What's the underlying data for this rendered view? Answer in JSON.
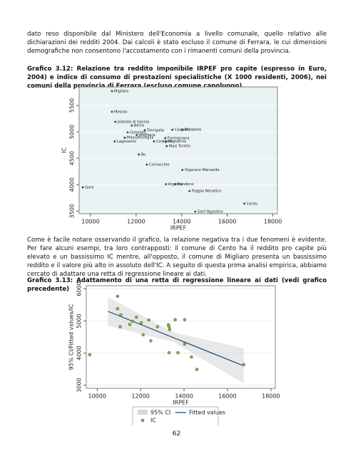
{
  "document": {
    "paragraphs": [
      "dato reso disponibile dal Ministero dell'Economia a livello comunale, quello relativo alle dichiarazioni dei redditi 2004. Dai calcoli è stato escluso il comune di Ferrara, le cui dimensioni demografiche non consentono l'accostamento con i rimanenti comuni della provincia.",
      "Come è facile notare osservando il grafico, la relazione negativa tra i due fenomeni è evidente. Per fare alcuni esempi, tra loro contrapposti: il comune di Cento ha il reddito pro capite più elevato e un bassissimo IC mentre, all'opposto, il comune di Migliaro presenta un bassissimo reddito e il valore più alto in assoluto dell'IC. A seguito di questa prima analisi empirica, abbiamo cercato di adattare una retta di regressione lineare ai dati."
    ],
    "captions": [
      "Grafico 3.12: Relazione tra reddito imponibile IRPEF pro capite (espresso in Euro, 2004) e indice di consumo di prestazioni specialistiche (X 1000 residenti, 2006), nei comuni della provincia di Ferrara (escluso comune capoluogo)",
      "Grafico 3.13: Adattamento di una retta di regressione lineare ai dati (vedi grafico precedente)"
    ],
    "page_number": "62"
  },
  "chart_data": [
    {
      "type": "scatter",
      "xlabel": "IRPEF",
      "ylabel": "IC",
      "xlim": [
        9500,
        18200
      ],
      "ylim": [
        3450,
        5850
      ],
      "xticks": [
        10000,
        12000,
        14000,
        16000,
        18000
      ],
      "yticks": [
        3500,
        4000,
        4500,
        5000,
        5500
      ],
      "grid": true,
      "series": [
        {
          "color": "#1a476f",
          "labels": [
            "Migliaro",
            "Mesola",
            "Jolanda di Savoia",
            "Berra",
            "Ostellato",
            "Tresigallo",
            "Copparo",
            "Mirabello",
            "Massafiscaglia",
            "Voghiera",
            "Formignana",
            "Codigoro",
            "Migliarino",
            "Lagosanto",
            "Masi Torello",
            "Ro",
            "Goro",
            "Comacchio",
            "Vigarano Mainarda",
            "Argenta",
            "Bondeno",
            "Poggio Renatico",
            "Cento",
            "Sant'Agostino"
          ],
          "x": [
            10940,
            10940,
            11090,
            11810,
            11630,
            12380,
            13590,
            14030,
            11500,
            12030,
            13280,
            12780,
            13310,
            11060,
            13340,
            12120,
            9660,
            12470,
            14030,
            13310,
            13720,
            14340,
            16750,
            14590
          ],
          "values": [
            5770,
            5380,
            5190,
            5120,
            4990,
            5030,
            5040,
            5040,
            4890,
            4940,
            4880,
            4820,
            4820,
            4820,
            4730,
            4570,
            3950,
            4380,
            4280,
            4010,
            4010,
            3880,
            3640,
            3490
          ]
        }
      ]
    },
    {
      "type": "scatter",
      "xlabel": "IRPEF",
      "ylabel": "95% CI/Fitted values/IC",
      "xlim": [
        9500,
        18200
      ],
      "ylim": [
        2900,
        6100
      ],
      "xticks": [
        10000,
        12000,
        14000,
        16000,
        18000
      ],
      "yticks": [
        3000,
        4000,
        5000,
        6000
      ],
      "grid": true,
      "ci": {
        "name": "95% CI",
        "color": "#d9d9d9",
        "x": [
          10500,
          13500,
          16750
        ],
        "lower": [
          4850,
          4350,
          3050
        ],
        "upper": [
          5750,
          4650,
          4150
        ]
      },
      "fit": {
        "name": "Fitted values",
        "color": "#1a476f",
        "x": [
          10500,
          16750
        ],
        "values": [
          5300,
          3600
        ]
      },
      "series": [
        {
          "name": "IC",
          "color": "#90a84a",
          "x": [
            10940,
            10940,
            11090,
            11810,
            11630,
            12380,
            13590,
            14030,
            11500,
            12030,
            13280,
            12780,
            13310,
            11060,
            13340,
            12120,
            9660,
            12470,
            14030,
            13310,
            13720,
            14340,
            16750,
            14590
          ],
          "values": [
            5770,
            5380,
            5190,
            5120,
            4990,
            5030,
            5040,
            5040,
            4890,
            4940,
            4880,
            4820,
            4820,
            4820,
            4730,
            4570,
            3950,
            4380,
            4280,
            4010,
            4010,
            3880,
            3640,
            3490
          ]
        }
      ]
    }
  ]
}
